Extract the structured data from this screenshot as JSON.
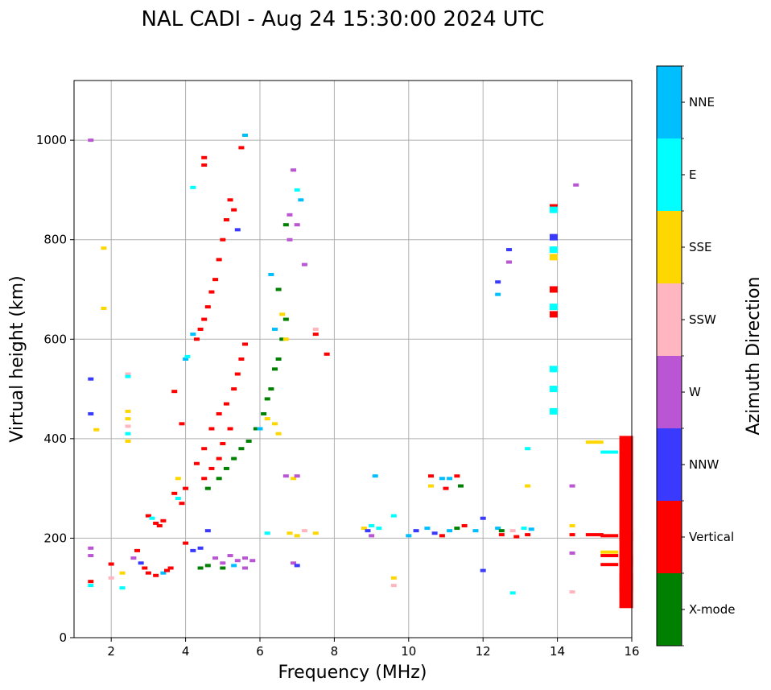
{
  "chart_data": {
    "type": "scatter",
    "title": "NAL CADI - Aug 24 15:30:00 2024 UTC",
    "xlabel": "Frequency (MHz)",
    "ylabel": "Virtual height (km)",
    "xlim": [
      1,
      16
    ],
    "ylim": [
      0,
      1120
    ],
    "xticks": [
      2,
      4,
      6,
      8,
      10,
      12,
      14,
      16
    ],
    "yticks": [
      0,
      200,
      400,
      600,
      800,
      1000
    ],
    "grid": true,
    "colorbar": {
      "label": "Azimuth Direction",
      "placement": "right",
      "categories": [
        {
          "name": "X-mode",
          "color": "#008000"
        },
        {
          "name": "Vertical",
          "color": "#ff0000"
        },
        {
          "name": "NNW",
          "color": "#3a3aff"
        },
        {
          "name": "W",
          "color": "#ba55d3"
        },
        {
          "name": "SSW",
          "color": "#ffb6c1"
        },
        {
          "name": "SSE",
          "color": "#ffd700"
        },
        {
          "name": "E",
          "color": "#00ffff"
        },
        {
          "name": "NNE",
          "color": "#00bfff"
        }
      ]
    },
    "points_note": "Each point: [frequency MHz, virtual height km, category]. Approximate readings from the ionogram.",
    "points": [
      [
        1.45,
        1000,
        "W"
      ],
      [
        1.45,
        520,
        "NNW"
      ],
      [
        1.45,
        450,
        "NNW"
      ],
      [
        1.45,
        180,
        "W"
      ],
      [
        1.45,
        165,
        "W"
      ],
      [
        1.45,
        113,
        "Vertical"
      ],
      [
        1.45,
        105,
        "E"
      ],
      [
        1.8,
        783,
        "SSE"
      ],
      [
        1.8,
        662,
        "SSE"
      ],
      [
        1.6,
        418,
        "SSE"
      ],
      [
        2.0,
        148,
        "Vertical"
      ],
      [
        2.0,
        120,
        "SSW"
      ],
      [
        2.3,
        130,
        "SSE"
      ],
      [
        2.3,
        100,
        "E"
      ],
      [
        2.45,
        530,
        "SSW"
      ],
      [
        2.45,
        525,
        "E"
      ],
      [
        2.45,
        455,
        "SSE"
      ],
      [
        2.45,
        440,
        "SSE"
      ],
      [
        2.45,
        425,
        "SSW"
      ],
      [
        2.45,
        410,
        "E"
      ],
      [
        2.45,
        395,
        "SSE"
      ],
      [
        2.6,
        160,
        "W"
      ],
      [
        2.7,
        175,
        "Vertical"
      ],
      [
        2.8,
        150,
        "NNW"
      ],
      [
        2.9,
        140,
        "Vertical"
      ],
      [
        3.0,
        245,
        "Vertical"
      ],
      [
        3.1,
        240,
        "E"
      ],
      [
        3.2,
        230,
        "Vertical"
      ],
      [
        3.3,
        225,
        "Vertical"
      ],
      [
        3.4,
        235,
        "Vertical"
      ],
      [
        3.0,
        130,
        "Vertical"
      ],
      [
        3.2,
        125,
        "Vertical"
      ],
      [
        3.4,
        130,
        "NNE"
      ],
      [
        3.5,
        135,
        "Vertical"
      ],
      [
        3.6,
        140,
        "Vertical"
      ],
      [
        3.7,
        290,
        "Vertical"
      ],
      [
        3.8,
        320,
        "SSE"
      ],
      [
        3.8,
        280,
        "E"
      ],
      [
        3.9,
        270,
        "Vertical"
      ],
      [
        4.0,
        300,
        "Vertical"
      ],
      [
        3.7,
        495,
        "Vertical"
      ],
      [
        3.9,
        430,
        "Vertical"
      ],
      [
        4.0,
        560,
        "NNE"
      ],
      [
        4.05,
        565,
        "E"
      ],
      [
        4.2,
        905,
        "E"
      ],
      [
        4.5,
        965,
        "Vertical"
      ],
      [
        4.5,
        950,
        "Vertical"
      ],
      [
        4.2,
        610,
        "NNE"
      ],
      [
        4.3,
        600,
        "Vertical"
      ],
      [
        4.4,
        620,
        "Vertical"
      ],
      [
        4.5,
        640,
        "Vertical"
      ],
      [
        4.6,
        665,
        "Vertical"
      ],
      [
        4.7,
        695,
        "Vertical"
      ],
      [
        4.8,
        720,
        "Vertical"
      ],
      [
        4.9,
        760,
        "Vertical"
      ],
      [
        5.0,
        800,
        "Vertical"
      ],
      [
        5.1,
        840,
        "Vertical"
      ],
      [
        5.2,
        880,
        "Vertical"
      ],
      [
        5.3,
        860,
        "Vertical"
      ],
      [
        5.4,
        820,
        "NNW"
      ],
      [
        5.5,
        985,
        "Vertical"
      ],
      [
        5.6,
        1010,
        "NNE"
      ],
      [
        4.3,
        350,
        "Vertical"
      ],
      [
        4.5,
        380,
        "Vertical"
      ],
      [
        4.7,
        420,
        "Vertical"
      ],
      [
        4.9,
        450,
        "Vertical"
      ],
      [
        5.1,
        470,
        "Vertical"
      ],
      [
        5.3,
        500,
        "Vertical"
      ],
      [
        5.4,
        530,
        "Vertical"
      ],
      [
        5.5,
        560,
        "Vertical"
      ],
      [
        5.6,
        590,
        "Vertical"
      ],
      [
        4.5,
        320,
        "Vertical"
      ],
      [
        4.7,
        340,
        "Vertical"
      ],
      [
        4.9,
        360,
        "Vertical"
      ],
      [
        5.0,
        390,
        "Vertical"
      ],
      [
        5.2,
        420,
        "Vertical"
      ],
      [
        4.6,
        300,
        "X-mode"
      ],
      [
        4.9,
        320,
        "X-mode"
      ],
      [
        5.1,
        340,
        "X-mode"
      ],
      [
        5.3,
        360,
        "X-mode"
      ],
      [
        5.5,
        380,
        "X-mode"
      ],
      [
        5.7,
        395,
        "X-mode"
      ],
      [
        5.9,
        420,
        "X-mode"
      ],
      [
        6.1,
        450,
        "X-mode"
      ],
      [
        6.2,
        480,
        "X-mode"
      ],
      [
        6.3,
        500,
        "X-mode"
      ],
      [
        6.4,
        540,
        "X-mode"
      ],
      [
        6.5,
        560,
        "X-mode"
      ],
      [
        6.6,
        600,
        "X-mode"
      ],
      [
        6.7,
        640,
        "X-mode"
      ],
      [
        6.0,
        420,
        "NNE"
      ],
      [
        6.2,
        440,
        "SSE"
      ],
      [
        6.4,
        430,
        "SSE"
      ],
      [
        6.5,
        410,
        "SSE"
      ],
      [
        6.6,
        650,
        "SSE"
      ],
      [
        6.7,
        600,
        "SSE"
      ],
      [
        6.4,
        620,
        "NNE"
      ],
      [
        6.3,
        730,
        "NNE"
      ],
      [
        6.5,
        700,
        "X-mode"
      ],
      [
        6.7,
        830,
        "X-mode"
      ],
      [
        6.9,
        940,
        "W"
      ],
      [
        7.0,
        900,
        "E"
      ],
      [
        7.1,
        880,
        "NNE"
      ],
      [
        6.8,
        850,
        "W"
      ],
      [
        6.8,
        800,
        "W"
      ],
      [
        7.0,
        830,
        "W"
      ],
      [
        7.2,
        750,
        "W"
      ],
      [
        7.5,
        620,
        "SSW"
      ],
      [
        7.5,
        610,
        "Vertical"
      ],
      [
        7.8,
        570,
        "Vertical"
      ],
      [
        4.8,
        160,
        "W"
      ],
      [
        5.0,
        150,
        "W"
      ],
      [
        5.2,
        165,
        "W"
      ],
      [
        5.4,
        155,
        "W"
      ],
      [
        5.6,
        160,
        "W"
      ],
      [
        5.8,
        155,
        "W"
      ],
      [
        4.4,
        140,
        "X-mode"
      ],
      [
        4.6,
        145,
        "X-mode"
      ],
      [
        5.0,
        140,
        "X-mode"
      ],
      [
        5.3,
        145,
        "NNE"
      ],
      [
        5.6,
        140,
        "W"
      ],
      [
        4.2,
        175,
        "NNW"
      ],
      [
        4.4,
        180,
        "NNW"
      ],
      [
        4.6,
        215,
        "NNW"
      ],
      [
        4.0,
        190,
        "Vertical"
      ],
      [
        6.7,
        325,
        "W"
      ],
      [
        6.9,
        320,
        "SSE"
      ],
      [
        7.0,
        325,
        "W"
      ],
      [
        6.2,
        210,
        "E"
      ],
      [
        6.8,
        210,
        "SSE"
      ],
      [
        7.0,
        205,
        "SSE"
      ],
      [
        7.2,
        215,
        "SSW"
      ],
      [
        7.5,
        210,
        "SSE"
      ],
      [
        6.9,
        150,
        "W"
      ],
      [
        7.0,
        145,
        "NNW"
      ],
      [
        8.8,
        220,
        "SSE"
      ],
      [
        8.9,
        215,
        "NNW"
      ],
      [
        9.0,
        225,
        "E"
      ],
      [
        9.2,
        220,
        "E"
      ],
      [
        9.0,
        205,
        "W"
      ],
      [
        9.1,
        325,
        "NNE"
      ],
      [
        9.6,
        245,
        "E"
      ],
      [
        9.6,
        120,
        "SSE"
      ],
      [
        9.6,
        105,
        "SSW"
      ],
      [
        10.0,
        205,
        "NNE"
      ],
      [
        10.2,
        215,
        "NNW"
      ],
      [
        10.5,
        220,
        "NNE"
      ],
      [
        10.7,
        210,
        "NNW"
      ],
      [
        10.9,
        205,
        "Vertical"
      ],
      [
        11.1,
        215,
        "NNE"
      ],
      [
        11.3,
        220,
        "X-mode"
      ],
      [
        11.5,
        225,
        "Vertical"
      ],
      [
        11.8,
        215,
        "NNE"
      ],
      [
        10.6,
        325,
        "Vertical"
      ],
      [
        10.9,
        320,
        "NNE"
      ],
      [
        11.1,
        320,
        "NNE"
      ],
      [
        11.4,
        305,
        "X-mode"
      ],
      [
        11.3,
        325,
        "Vertical"
      ],
      [
        10.6,
        305,
        "SSE"
      ],
      [
        11.0,
        300,
        "Vertical"
      ],
      [
        12.0,
        240,
        "NNW"
      ],
      [
        12.0,
        135,
        "NNW"
      ],
      [
        12.4,
        220,
        "NNE"
      ],
      [
        12.5,
        215,
        "X-mode"
      ],
      [
        12.8,
        215,
        "SSW"
      ],
      [
        13.1,
        220,
        "E"
      ],
      [
        13.3,
        218,
        "NNE"
      ],
      [
        12.5,
        207,
        "Vertical"
      ],
      [
        12.9,
        203,
        "Vertical"
      ],
      [
        13.2,
        207,
        "Vertical"
      ],
      [
        13.2,
        380,
        "E"
      ],
      [
        13.2,
        305,
        "SSE"
      ],
      [
        12.8,
        90,
        "E"
      ],
      [
        12.7,
        780,
        "NNW"
      ],
      [
        12.7,
        755,
        "W"
      ],
      [
        12.4,
        715,
        "NNW"
      ],
      [
        12.4,
        690,
        "NNE"
      ],
      [
        14.5,
        910,
        "W"
      ],
      [
        13.9,
        865,
        "Vertical"
      ],
      [
        13.9,
        860,
        "E"
      ],
      [
        13.9,
        805,
        "NNW"
      ],
      [
        13.9,
        780,
        "E"
      ],
      [
        13.9,
        765,
        "SSE"
      ],
      [
        13.9,
        700,
        "Vertical"
      ],
      [
        13.9,
        665,
        "E"
      ],
      [
        13.9,
        650,
        "Vertical"
      ],
      [
        13.9,
        540,
        "E"
      ],
      [
        13.9,
        500,
        "E"
      ],
      [
        13.9,
        455,
        "E"
      ],
      [
        14.4,
        305,
        "W"
      ],
      [
        14.4,
        225,
        "SSE"
      ],
      [
        14.4,
        207,
        "Vertical"
      ],
      [
        14.4,
        170,
        "W"
      ],
      [
        14.4,
        92,
        "SSW"
      ],
      [
        15.0,
        393,
        "SSE"
      ],
      [
        15.4,
        373,
        "E"
      ],
      [
        15.0,
        207,
        "Vertical"
      ],
      [
        15.4,
        205,
        "Vertical"
      ],
      [
        15.4,
        172,
        "SSE"
      ],
      [
        15.4,
        165,
        "Vertical"
      ],
      [
        15.4,
        147,
        "Vertical"
      ],
      [
        15.85,
        370,
        "Vertical"
      ],
      [
        15.85,
        300,
        "Vertical"
      ],
      [
        15.85,
        230,
        "Vertical"
      ],
      [
        15.85,
        180,
        "Vertical"
      ],
      [
        15.85,
        130,
        "Vertical"
      ],
      [
        15.85,
        95,
        "Vertical"
      ]
    ]
  }
}
